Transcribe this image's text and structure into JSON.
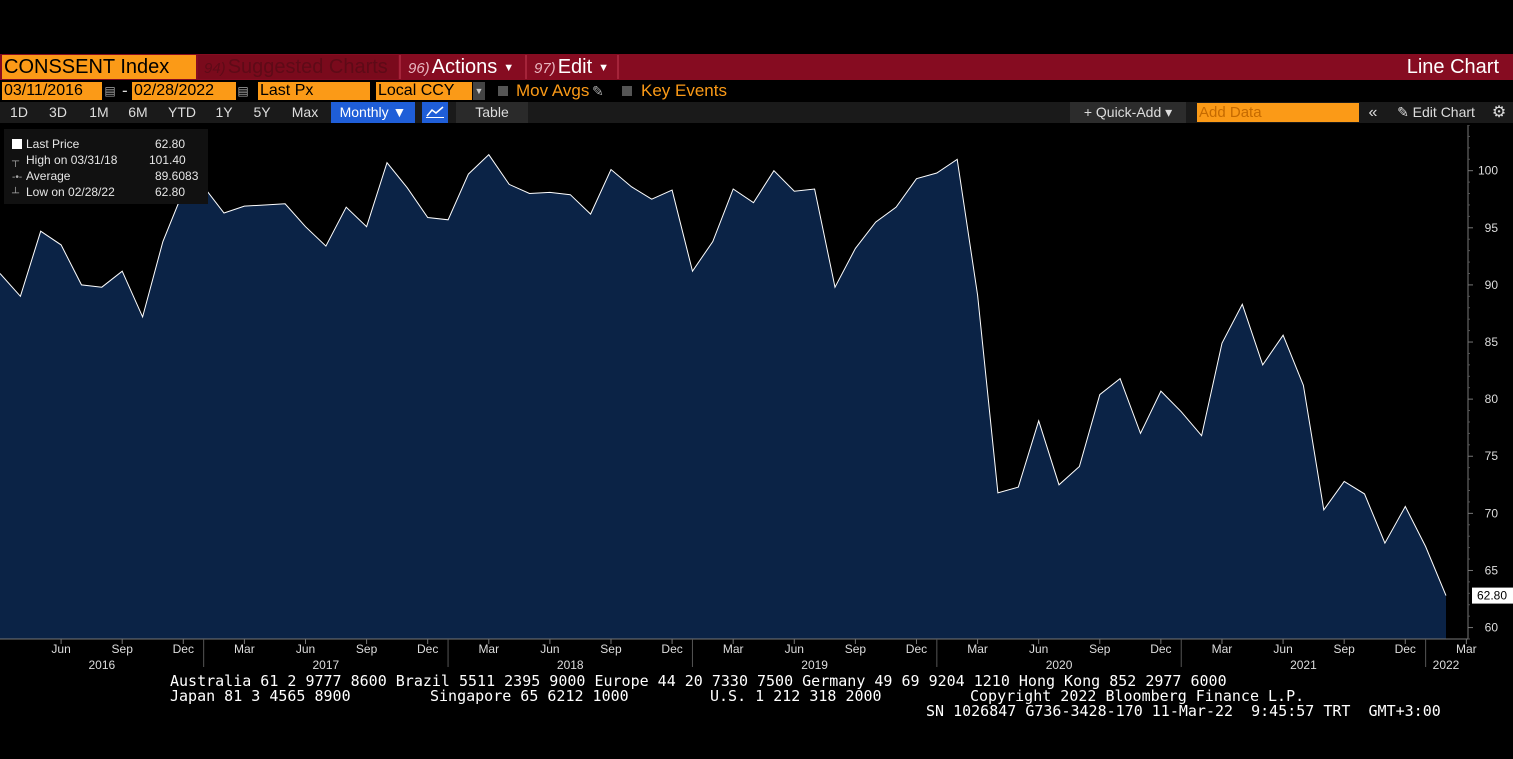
{
  "header": {
    "ticker": "CONSSENT Index",
    "menus": [
      {
        "num": "94)",
        "label": "Suggested Charts",
        "dim": true
      },
      {
        "num": "96)",
        "label": "Actions",
        "caret": true
      },
      {
        "num": "97)",
        "label": "Edit",
        "caret": true
      }
    ],
    "chart_type": "Line Chart"
  },
  "controls": {
    "start_date": "03/11/2016",
    "dash": "-",
    "end_date": "02/28/2022",
    "price_field": "Last Px",
    "currency": "Local CCY",
    "mov_avgs": "Mov Avgs",
    "key_events": "Key Events"
  },
  "toolbar": {
    "ranges": [
      "1D",
      "3D",
      "1M",
      "6M",
      "YTD",
      "1Y",
      "5Y",
      "Max"
    ],
    "frequency": "Monthly ▼",
    "table": "Table",
    "quick_add": "+ Quick-Add ▾",
    "add_data_placeholder": "Add Data",
    "collapse": "«",
    "edit_chart": "✎ Edit Chart",
    "settings_icon": "gear-icon"
  },
  "legend": {
    "rows": [
      {
        "label": "Last Price",
        "value": "62.80"
      },
      {
        "label": "High on 03/31/18",
        "value": "101.40"
      },
      {
        "label": "Average",
        "value": "89.6083"
      },
      {
        "label": "Low on 02/28/22",
        "value": "62.80"
      }
    ]
  },
  "colors": {
    "accent": "#fb9a17",
    "title_bar": "#860c21",
    "area_fill": "#0b2346",
    "line": "#ffffff"
  },
  "chart_data": {
    "type": "area",
    "x_start": "2016-03",
    "x_end": "2022-02",
    "values": [
      91.0,
      89.0,
      94.7,
      93.5,
      90.0,
      89.8,
      91.2,
      87.2,
      93.8,
      98.2,
      98.6,
      96.3,
      96.9,
      97.0,
      97.1,
      95.1,
      93.4,
      96.8,
      95.1,
      100.7,
      98.5,
      95.9,
      95.7,
      99.7,
      101.4,
      98.8,
      98.0,
      98.1,
      97.9,
      96.2,
      100.1,
      98.6,
      97.5,
      98.3,
      91.2,
      93.8,
      98.4,
      97.2,
      100.0,
      98.2,
      98.4,
      89.8,
      93.2,
      95.5,
      96.8,
      99.3,
      99.8,
      101.0,
      89.1,
      71.8,
      72.3,
      78.1,
      72.5,
      74.1,
      80.4,
      81.8,
      77.0,
      80.7,
      78.9,
      76.8,
      84.9,
      88.3,
      83.0,
      85.6,
      81.2,
      70.3,
      72.8,
      71.7,
      67.4,
      70.6,
      67.1,
      62.8
    ],
    "ylim": [
      59,
      104
    ],
    "y_ticks": [
      60,
      65,
      70,
      75,
      80,
      85,
      90,
      95,
      100
    ],
    "x_month_ticks": [
      {
        "label": "Jun",
        "date": "2016-06"
      },
      {
        "label": "Sep",
        "date": "2016-09"
      },
      {
        "label": "Dec",
        "date": "2016-12"
      },
      {
        "label": "Mar",
        "date": "2017-03"
      },
      {
        "label": "Jun",
        "date": "2017-06"
      },
      {
        "label": "Sep",
        "date": "2017-09"
      },
      {
        "label": "Dec",
        "date": "2017-12"
      },
      {
        "label": "Mar",
        "date": "2018-03"
      },
      {
        "label": "Jun",
        "date": "2018-06"
      },
      {
        "label": "Sep",
        "date": "2018-09"
      },
      {
        "label": "Dec",
        "date": "2018-12"
      },
      {
        "label": "Mar",
        "date": "2019-03"
      },
      {
        "label": "Jun",
        "date": "2019-06"
      },
      {
        "label": "Sep",
        "date": "2019-09"
      },
      {
        "label": "Dec",
        "date": "2019-12"
      },
      {
        "label": "Mar",
        "date": "2020-03"
      },
      {
        "label": "Jun",
        "date": "2020-06"
      },
      {
        "label": "Sep",
        "date": "2020-09"
      },
      {
        "label": "Dec",
        "date": "2020-12"
      },
      {
        "label": "Mar",
        "date": "2021-03"
      },
      {
        "label": "Jun",
        "date": "2021-06"
      },
      {
        "label": "Sep",
        "date": "2021-09"
      },
      {
        "label": "Dec",
        "date": "2021-12"
      },
      {
        "label": "Mar",
        "date": "2022-03"
      }
    ],
    "x_year_ticks": [
      {
        "label": "2016",
        "date": "2016-08"
      },
      {
        "label": "2017",
        "date": "2017-07"
      },
      {
        "label": "2018",
        "date": "2018-07"
      },
      {
        "label": "2019",
        "date": "2019-07"
      },
      {
        "label": "2020",
        "date": "2020-07"
      },
      {
        "label": "2021",
        "date": "2021-07"
      },
      {
        "label": "2022",
        "date": "2022-02"
      }
    ],
    "last_value_label": "62.80"
  },
  "footer": {
    "line1": "Australia 61 2 9777 8600 Brazil 5511 2395 9000 Europe 44 20 7330 7500 Germany 49 69 9204 1210 Hong Kong 852 2977 6000",
    "line2a": "Japan 81 3 4565 8900",
    "line2b": "Singapore 65 6212 1000",
    "line2c": "U.S. 1 212 318 2000",
    "line2d": "Copyright 2022 Bloomberg Finance L.P.",
    "line3": "SN 1026847 G736-3428-170 11-Mar-22  9:45:57 TRT  GMT+3:00"
  }
}
